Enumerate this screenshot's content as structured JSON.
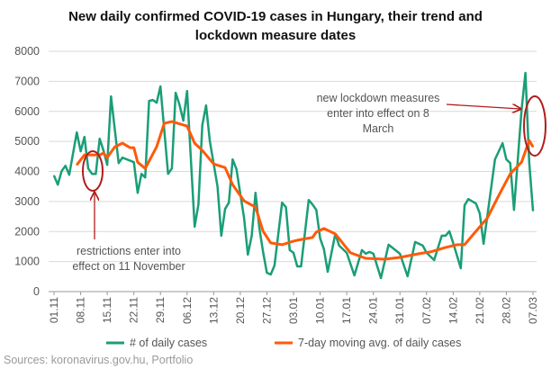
{
  "chart_data": {
    "type": "line",
    "title": "New daily confirmed COVID-19 cases in Hungary, their trend and lockdown measure dates",
    "title_lines": [
      "New daily confirmed COVID-19 cases in Hungary, their trend and",
      "lockdown measure dates"
    ],
    "xlabel": "",
    "ylabel": "",
    "ylim": [
      0,
      8000
    ],
    "yticks": [
      0,
      1000,
      2000,
      3000,
      4000,
      5000,
      6000,
      7000,
      8000
    ],
    "x_unit": "days since 01.11",
    "xlim": [
      0,
      126
    ],
    "xtick_labels": [
      "01.11",
      "08.11",
      "15.11",
      "22.11",
      "29.11",
      "06.12",
      "13.12",
      "20.12",
      "27.12",
      "03.01",
      "10.01",
      "17.01",
      "24.01",
      "31.01",
      "07.02",
      "14.02",
      "21.02",
      "28.02",
      "07.03"
    ],
    "grid": true,
    "legend_placement": "bottom",
    "series": [
      {
        "name": "# of daily cases",
        "color": "#1a9e77",
        "points": [
          [
            0,
            3860
          ],
          [
            1,
            3560
          ],
          [
            2,
            4010
          ],
          [
            3,
            4190
          ],
          [
            4,
            3890
          ],
          [
            6,
            5300
          ],
          [
            7,
            4670
          ],
          [
            8,
            5150
          ],
          [
            9,
            4100
          ],
          [
            10,
            3920
          ],
          [
            11,
            3920
          ],
          [
            12,
            5090
          ],
          [
            13,
            4700
          ],
          [
            14,
            4220
          ],
          [
            15,
            6500
          ],
          [
            17,
            4280
          ],
          [
            18,
            4460
          ],
          [
            21,
            4310
          ],
          [
            22,
            3290
          ],
          [
            23,
            3920
          ],
          [
            24,
            3800
          ],
          [
            25,
            6350
          ],
          [
            26,
            6380
          ],
          [
            27,
            6290
          ],
          [
            28,
            6830
          ],
          [
            30,
            3920
          ],
          [
            31,
            4100
          ],
          [
            32,
            6620
          ],
          [
            33,
            6230
          ],
          [
            34,
            5690
          ],
          [
            35,
            6680
          ],
          [
            37,
            2160
          ],
          [
            38,
            2900
          ],
          [
            39,
            5540
          ],
          [
            40,
            6200
          ],
          [
            41,
            5000
          ],
          [
            43,
            3500
          ],
          [
            44,
            1860
          ],
          [
            45,
            2750
          ],
          [
            46,
            2960
          ],
          [
            47,
            4400
          ],
          [
            48,
            4070
          ],
          [
            50,
            2450
          ],
          [
            51,
            1230
          ],
          [
            52,
            1860
          ],
          [
            53,
            3290
          ],
          [
            54,
            2130
          ],
          [
            55,
            1320
          ],
          [
            56,
            630
          ],
          [
            57,
            570
          ],
          [
            58,
            870
          ],
          [
            60,
            2960
          ],
          [
            61,
            2810
          ],
          [
            62,
            1380
          ],
          [
            63,
            1290
          ],
          [
            64,
            840
          ],
          [
            65,
            840
          ],
          [
            67,
            3050
          ],
          [
            68,
            2900
          ],
          [
            69,
            2720
          ],
          [
            70,
            1770
          ],
          [
            71,
            1410
          ],
          [
            72,
            660
          ],
          [
            74,
            1920
          ],
          [
            75,
            1530
          ],
          [
            77,
            1290
          ],
          [
            79,
            540
          ],
          [
            81,
            1380
          ],
          [
            82,
            1260
          ],
          [
            83,
            1320
          ],
          [
            84,
            1260
          ],
          [
            86,
            450
          ],
          [
            88,
            1560
          ],
          [
            91,
            1260
          ],
          [
            93,
            510
          ],
          [
            95,
            1650
          ],
          [
            97,
            1530
          ],
          [
            98,
            1290
          ],
          [
            100,
            1050
          ],
          [
            102,
            1860
          ],
          [
            103,
            1860
          ],
          [
            104,
            2010
          ],
          [
            105,
            1620
          ],
          [
            107,
            780
          ],
          [
            108,
            2870
          ],
          [
            109,
            3080
          ],
          [
            111,
            2930
          ],
          [
            112,
            2600
          ],
          [
            113,
            1590
          ],
          [
            116,
            4400
          ],
          [
            118,
            4940
          ],
          [
            119,
            4400
          ],
          [
            120,
            4280
          ],
          [
            121,
            2720
          ],
          [
            123,
            6050
          ],
          [
            124,
            7280
          ],
          [
            125,
            4310
          ],
          [
            126,
            2690
          ]
        ]
      },
      {
        "name": "7-day moving avg. of daily cases",
        "color": "#ff5a0a",
        "points": [
          [
            6,
            4220
          ],
          [
            8,
            4550
          ],
          [
            12,
            4550
          ],
          [
            13,
            4610
          ],
          [
            14,
            4460
          ],
          [
            16,
            4820
          ],
          [
            18,
            4940
          ],
          [
            20,
            4790
          ],
          [
            21,
            4790
          ],
          [
            22,
            4310
          ],
          [
            24,
            4100
          ],
          [
            27,
            4820
          ],
          [
            29,
            5600
          ],
          [
            31,
            5660
          ],
          [
            35,
            5510
          ],
          [
            37,
            4940
          ],
          [
            39,
            4700
          ],
          [
            42,
            4250
          ],
          [
            45,
            4130
          ],
          [
            47,
            3560
          ],
          [
            50,
            3020
          ],
          [
            53,
            2810
          ],
          [
            55,
            2010
          ],
          [
            57,
            1620
          ],
          [
            60,
            1560
          ],
          [
            63,
            1680
          ],
          [
            64,
            1710
          ],
          [
            68,
            1800
          ],
          [
            69,
            1980
          ],
          [
            71,
            2100
          ],
          [
            74,
            1920
          ],
          [
            78,
            1290
          ],
          [
            82,
            1110
          ],
          [
            87,
            1080
          ],
          [
            91,
            1140
          ],
          [
            96,
            1260
          ],
          [
            99,
            1320
          ],
          [
            103,
            1470
          ],
          [
            106,
            1560
          ],
          [
            108,
            1560
          ],
          [
            111,
            2010
          ],
          [
            114,
            2450
          ],
          [
            117,
            3200
          ],
          [
            120,
            3920
          ],
          [
            123,
            4310
          ],
          [
            125,
            5030
          ],
          [
            126,
            4820
          ]
        ]
      }
    ],
    "annotations": [
      {
        "lines": [
          "restrictions enter into",
          "effect on 11 November"
        ],
        "target_day": 10,
        "target_value": 4000,
        "color": "#b01c1c"
      },
      {
        "lines": [
          "new lockdown measures",
          "enter into effect on 8",
          "March"
        ],
        "target_day": 125,
        "target_value": 5500,
        "color": "#b01c1c"
      }
    ],
    "source": "Sources: koronavirus.gov.hu, Portfolio"
  }
}
